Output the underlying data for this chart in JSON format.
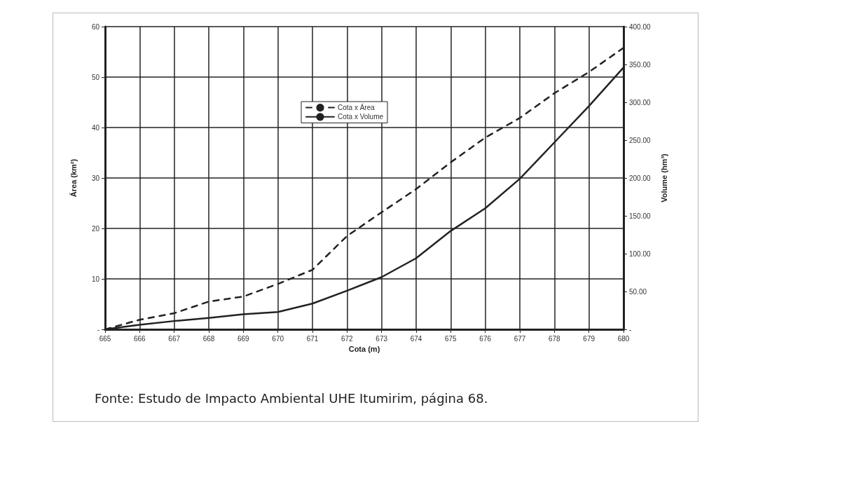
{
  "chart_data": {
    "type": "line",
    "xlabel": "Cota (m)",
    "ylabel": "Área (km²)",
    "y2label": "Volume (hm³)",
    "annotations": [
      "Fonte: Estudo de Impacto Ambiental UHE Itumirim, página 68."
    ],
    "x": [
      665,
      666,
      667,
      668,
      669,
      670,
      671,
      672,
      673,
      674,
      675,
      676,
      677,
      678,
      679,
      680
    ],
    "series": [
      {
        "name": "Cota x Área",
        "color": "#222222",
        "line_style": "dashed",
        "values": [
          0,
          1.9,
          3.2,
          5.5,
          6.5,
          9.0,
          11.8,
          18.5,
          23.2,
          27.8,
          33.1,
          38.0,
          41.9,
          46.8,
          51.0,
          55.8
        ]
      },
      {
        "name": "Cota x Volume",
        "color": "#222222",
        "line_style": "solid",
        "axis": "y2",
        "values": [
          0,
          6,
          11,
          15,
          20,
          23,
          34,
          51,
          69,
          94,
          130,
          160,
          199,
          247,
          295,
          346
        ]
      }
    ],
    "xlim": [
      665,
      680
    ],
    "xticks": [
      665,
      666,
      667,
      668,
      669,
      670,
      671,
      672,
      673,
      674,
      675,
      676,
      677,
      678,
      679,
      680
    ],
    "ylim": [
      0,
      60
    ],
    "yticks": [
      {
        "value": 0,
        "label": "-"
      },
      10,
      20,
      30,
      40,
      50,
      60
    ],
    "y2lim": [
      0,
      400
    ],
    "y2ticks": [
      {
        "value": 0,
        "label": "-"
      },
      {
        "value": 50,
        "label": "50.00"
      },
      {
        "value": 100,
        "label": "100.00"
      },
      {
        "value": 150,
        "label": "150.00"
      },
      {
        "value": 200,
        "label": "200.00"
      },
      {
        "value": 250,
        "label": "250.00"
      },
      {
        "value": 300,
        "label": "300.00"
      },
      {
        "value": 350,
        "label": "350.00"
      },
      {
        "value": 400,
        "label": "400.00"
      }
    ],
    "grid": true,
    "legend": "top",
    "marker": "none"
  }
}
